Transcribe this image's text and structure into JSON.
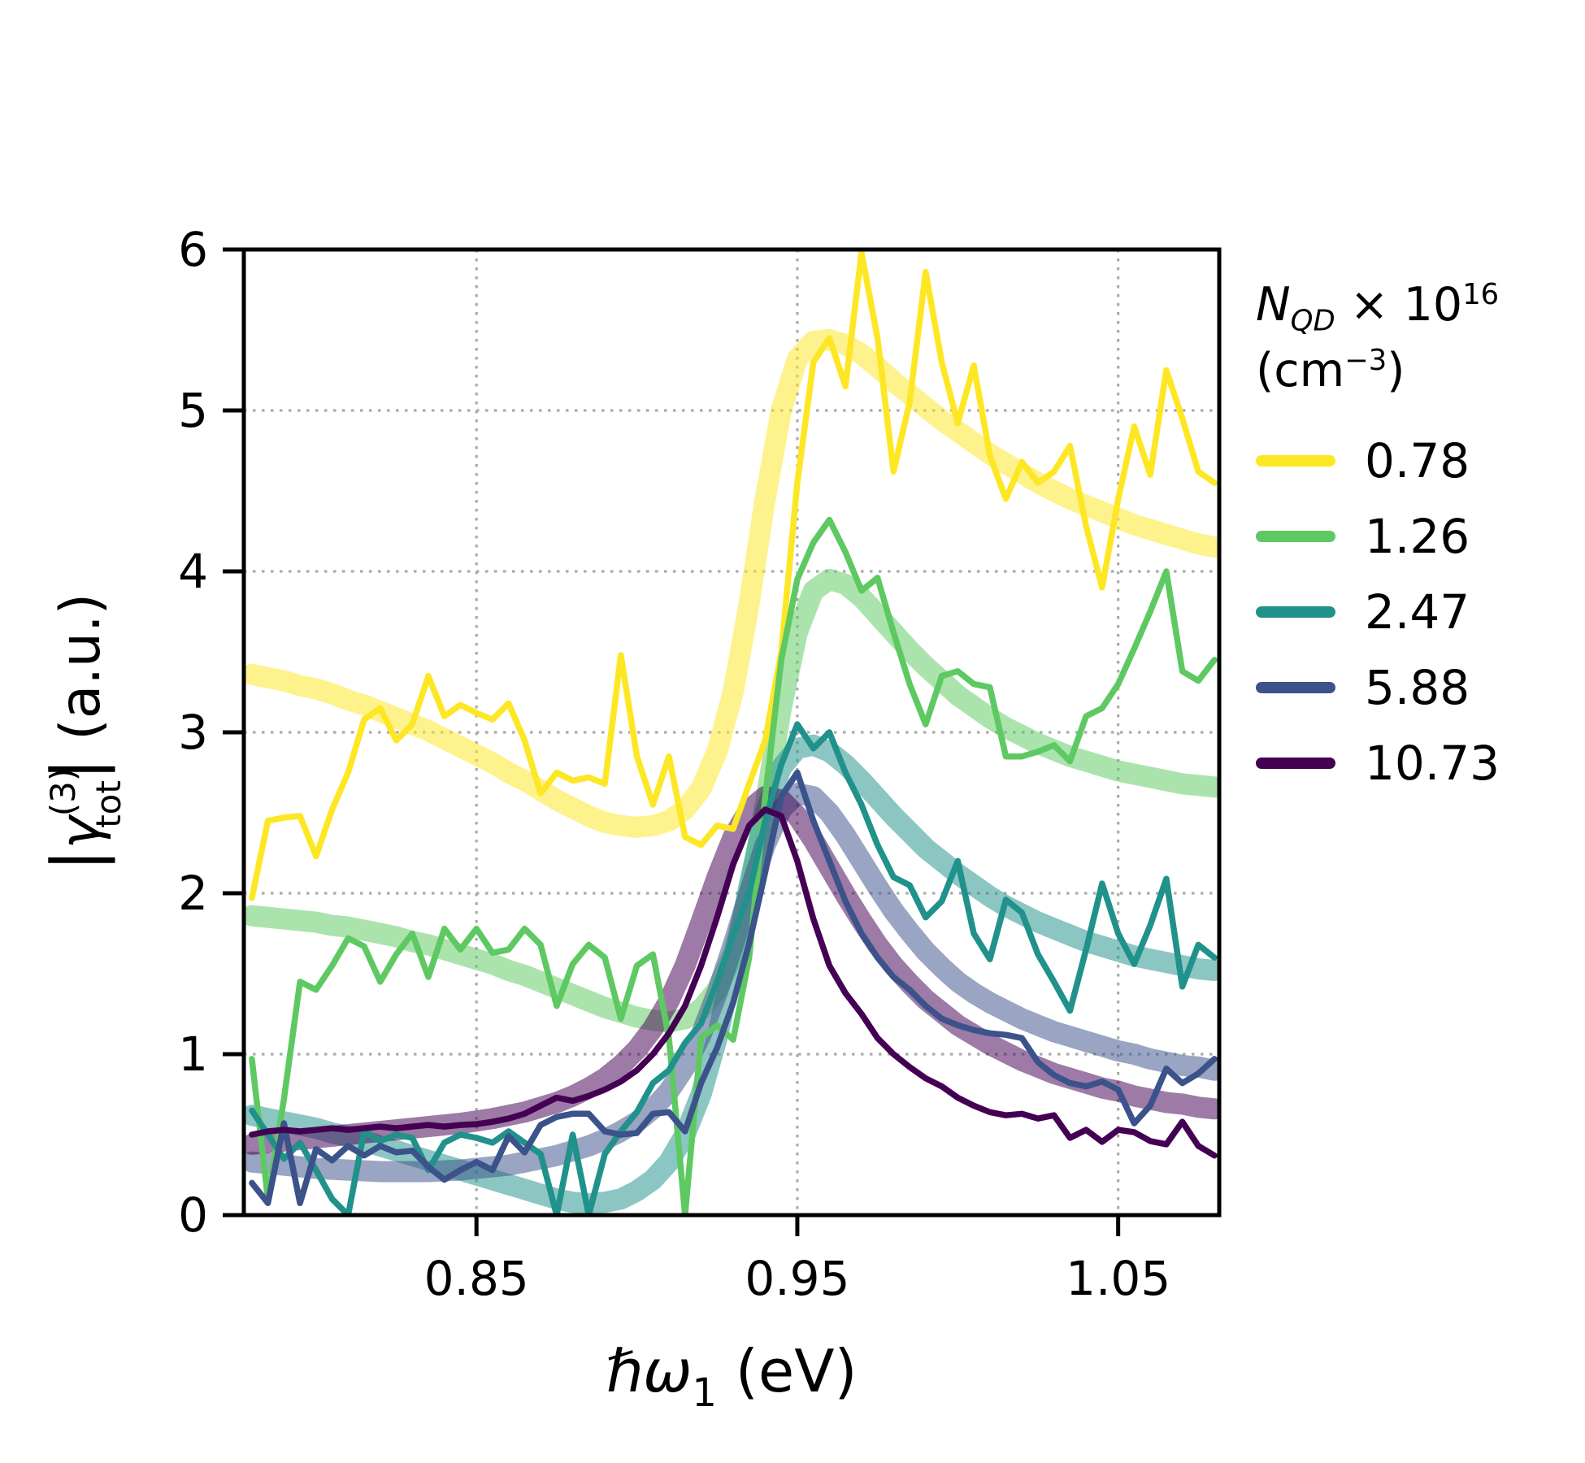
{
  "figure": {
    "background": "#ffffff"
  },
  "axes": {
    "xlabel": {
      "main": "ℏω",
      "sub": "1",
      "unit": " (eV)"
    },
    "ylabel": {
      "open": "|",
      "symbol": "γ",
      "sup": "(3)",
      "sub": "tot",
      "close": "|",
      "unit": " (a.u.)"
    },
    "xlim": [
      0.7775,
      1.0815
    ],
    "ylim": [
      0,
      6
    ],
    "xticks": [
      {
        "value": 0.85,
        "label": "0.85"
      },
      {
        "value": 0.95,
        "label": "0.95"
      },
      {
        "value": 1.05,
        "label": "1.05"
      }
    ],
    "yticks": [
      {
        "value": 0,
        "label": "0"
      },
      {
        "value": 1,
        "label": "1"
      },
      {
        "value": 2,
        "label": "2"
      },
      {
        "value": 3,
        "label": "3"
      },
      {
        "value": 4,
        "label": "4"
      },
      {
        "value": 5,
        "label": "5"
      },
      {
        "value": 6,
        "label": "6"
      }
    ],
    "grid": "dotted"
  },
  "legend": {
    "title": {
      "n": "N",
      "n_sub": "QD",
      "times": " × 10",
      "times_exp": "16",
      "cm_open": "(cm",
      "cm_exp": "−3",
      "cm_close": ")"
    },
    "items": [
      {
        "label": "0.78",
        "color": "#FDE725"
      },
      {
        "label": "1.26",
        "color": "#5EC962"
      },
      {
        "label": "2.47",
        "color": "#21918C"
      },
      {
        "label": "5.88",
        "color": "#3B528B"
      },
      {
        "label": "10.73",
        "color": "#440154"
      }
    ]
  },
  "chart_data": {
    "type": "line",
    "title": "",
    "xlabel": "hbar*omega_1 (eV)",
    "ylabel": "|gamma_tot^(3)| (a.u.)",
    "xlim": [
      0.7775,
      1.0815
    ],
    "ylim": [
      0,
      6
    ],
    "grid": true,
    "legend_position": "right",
    "x": [
      0.78,
      0.785,
      0.79,
      0.795,
      0.8,
      0.805,
      0.81,
      0.815,
      0.82,
      0.825,
      0.83,
      0.835,
      0.84,
      0.845,
      0.85,
      0.855,
      0.86,
      0.865,
      0.87,
      0.875,
      0.88,
      0.885,
      0.89,
      0.895,
      0.9,
      0.905,
      0.91,
      0.915,
      0.92,
      0.925,
      0.93,
      0.935,
      0.94,
      0.945,
      0.95,
      0.955,
      0.96,
      0.965,
      0.97,
      0.975,
      0.98,
      0.985,
      0.99,
      0.995,
      1.0,
      1.005,
      1.01,
      1.015,
      1.02,
      1.025,
      1.03,
      1.035,
      1.04,
      1.045,
      1.05,
      1.055,
      1.06,
      1.065,
      1.07,
      1.075,
      1.08
    ],
    "series": [
      {
        "label": "0.78",
        "color": "#FDE725",
        "fit": [
          3.36,
          3.34,
          3.32,
          3.29,
          3.27,
          3.24,
          3.2,
          3.17,
          3.13,
          3.09,
          3.05,
          3.01,
          2.96,
          2.91,
          2.86,
          2.81,
          2.75,
          2.7,
          2.64,
          2.58,
          2.53,
          2.48,
          2.44,
          2.42,
          2.41,
          2.42,
          2.45,
          2.52,
          2.65,
          2.88,
          3.25,
          3.8,
          4.45,
          5.0,
          5.32,
          5.43,
          5.44,
          5.41,
          5.35,
          5.27,
          5.18,
          5.1,
          5.02,
          4.94,
          4.87,
          4.8,
          4.73,
          4.67,
          4.61,
          4.55,
          4.5,
          4.45,
          4.41,
          4.37,
          4.33,
          4.29,
          4.26,
          4.23,
          4.2,
          4.17,
          4.15
        ],
        "measured": [
          1.97,
          2.45,
          2.47,
          2.48,
          2.23,
          2.52,
          2.75,
          3.08,
          3.15,
          2.95,
          3.05,
          3.35,
          3.1,
          3.17,
          3.12,
          3.08,
          3.18,
          2.95,
          2.62,
          2.75,
          2.7,
          2.72,
          2.68,
          3.48,
          2.85,
          2.55,
          2.85,
          2.35,
          2.3,
          2.42,
          2.4,
          2.68,
          2.95,
          3.5,
          4.55,
          5.3,
          5.45,
          5.15,
          5.98,
          5.45,
          4.62,
          5.05,
          5.86,
          5.3,
          4.92,
          5.28,
          4.72,
          4.45,
          4.68,
          4.55,
          4.62,
          4.78,
          4.28,
          3.9,
          4.45,
          4.9,
          4.6,
          5.25,
          4.95,
          4.62,
          4.55
        ]
      },
      {
        "label": "1.26",
        "color": "#5EC962",
        "fit": [
          1.86,
          1.85,
          1.84,
          1.83,
          1.82,
          1.8,
          1.79,
          1.77,
          1.75,
          1.73,
          1.7,
          1.68,
          1.65,
          1.62,
          1.59,
          1.56,
          1.52,
          1.49,
          1.45,
          1.41,
          1.37,
          1.33,
          1.29,
          1.26,
          1.23,
          1.21,
          1.2,
          1.22,
          1.28,
          1.4,
          1.62,
          2.0,
          2.55,
          3.15,
          3.62,
          3.88,
          3.95,
          3.92,
          3.84,
          3.73,
          3.62,
          3.51,
          3.41,
          3.32,
          3.23,
          3.16,
          3.09,
          3.03,
          2.98,
          2.93,
          2.89,
          2.85,
          2.82,
          2.79,
          2.76,
          2.74,
          2.72,
          2.7,
          2.68,
          2.67,
          2.66
        ],
        "measured": [
          0.97,
          0.1,
          0.72,
          1.45,
          1.4,
          1.55,
          1.72,
          1.67,
          1.45,
          1.62,
          1.75,
          1.48,
          1.78,
          1.65,
          1.78,
          1.63,
          1.65,
          1.78,
          1.68,
          1.3,
          1.56,
          1.68,
          1.6,
          1.22,
          1.55,
          1.62,
          1.1,
          0.0,
          1.1,
          1.18,
          1.09,
          1.6,
          2.6,
          3.45,
          3.95,
          4.18,
          4.32,
          4.12,
          3.88,
          3.96,
          3.62,
          3.3,
          3.05,
          3.35,
          3.38,
          3.3,
          3.28,
          2.85,
          2.85,
          2.88,
          2.92,
          2.82,
          3.1,
          3.15,
          3.3,
          3.52,
          3.75,
          4.0,
          3.38,
          3.32,
          3.45
        ]
      },
      {
        "label": "2.47",
        "color": "#21918C",
        "fit": [
          0.62,
          0.6,
          0.58,
          0.56,
          0.54,
          0.51,
          0.49,
          0.46,
          0.43,
          0.4,
          0.37,
          0.34,
          0.31,
          0.28,
          0.25,
          0.22,
          0.19,
          0.16,
          0.13,
          0.1,
          0.08,
          0.07,
          0.08,
          0.1,
          0.15,
          0.22,
          0.33,
          0.5,
          0.75,
          1.1,
          1.55,
          2.05,
          2.5,
          2.78,
          2.9,
          2.92,
          2.88,
          2.8,
          2.7,
          2.59,
          2.48,
          2.38,
          2.28,
          2.2,
          2.12,
          2.05,
          1.98,
          1.92,
          1.87,
          1.82,
          1.78,
          1.74,
          1.7,
          1.67,
          1.64,
          1.61,
          1.59,
          1.57,
          1.55,
          1.53,
          1.52
        ],
        "measured": [
          0.65,
          0.5,
          0.35,
          0.45,
          0.28,
          0.1,
          0.0,
          0.52,
          0.46,
          0.5,
          0.48,
          0.28,
          0.45,
          0.5,
          0.48,
          0.45,
          0.52,
          0.45,
          0.38,
          0.0,
          0.5,
          0.0,
          0.38,
          0.52,
          0.64,
          0.82,
          0.9,
          1.07,
          1.19,
          1.45,
          1.74,
          2.0,
          2.45,
          2.8,
          3.05,
          2.9,
          3.0,
          2.75,
          2.55,
          2.3,
          2.1,
          2.05,
          1.85,
          1.95,
          2.2,
          1.75,
          1.59,
          1.96,
          1.88,
          1.62,
          1.45,
          1.27,
          1.65,
          2.06,
          1.75,
          1.56,
          1.8,
          2.09,
          1.42,
          1.68,
          1.6
        ]
      },
      {
        "label": "5.88",
        "color": "#3B528B",
        "fit": [
          0.33,
          0.32,
          0.31,
          0.3,
          0.29,
          0.285,
          0.28,
          0.275,
          0.27,
          0.27,
          0.27,
          0.27,
          0.275,
          0.28,
          0.29,
          0.3,
          0.31,
          0.33,
          0.35,
          0.37,
          0.4,
          0.43,
          0.47,
          0.52,
          0.58,
          0.66,
          0.77,
          0.92,
          1.12,
          1.38,
          1.68,
          2.0,
          2.3,
          2.52,
          2.62,
          2.6,
          2.5,
          2.36,
          2.2,
          2.04,
          1.89,
          1.76,
          1.64,
          1.54,
          1.45,
          1.38,
          1.32,
          1.27,
          1.22,
          1.18,
          1.14,
          1.11,
          1.08,
          1.05,
          1.02,
          1.0,
          0.97,
          0.95,
          0.93,
          0.92,
          0.9
        ],
        "measured": [
          0.2,
          0.075,
          0.57,
          0.075,
          0.41,
          0.34,
          0.43,
          0.37,
          0.43,
          0.39,
          0.4,
          0.3,
          0.22,
          0.28,
          0.33,
          0.28,
          0.49,
          0.39,
          0.56,
          0.61,
          0.63,
          0.63,
          0.52,
          0.5,
          0.51,
          0.63,
          0.64,
          0.52,
          0.82,
          1.04,
          1.32,
          1.69,
          2.13,
          2.6,
          2.75,
          2.45,
          2.2,
          1.95,
          1.75,
          1.6,
          1.48,
          1.4,
          1.3,
          1.22,
          1.18,
          1.15,
          1.13,
          1.12,
          1.1,
          0.95,
          0.87,
          0.82,
          0.8,
          0.83,
          0.78,
          0.57,
          0.68,
          0.91,
          0.82,
          0.88,
          0.97
        ]
      },
      {
        "label": "10.73",
        "color": "#440154",
        "fit": [
          0.44,
          0.45,
          0.46,
          0.47,
          0.48,
          0.49,
          0.5,
          0.51,
          0.52,
          0.53,
          0.54,
          0.55,
          0.56,
          0.57,
          0.585,
          0.6,
          0.62,
          0.64,
          0.67,
          0.7,
          0.74,
          0.79,
          0.85,
          0.93,
          1.03,
          1.16,
          1.33,
          1.55,
          1.82,
          2.1,
          2.35,
          2.52,
          2.6,
          2.58,
          2.48,
          2.33,
          2.16,
          1.99,
          1.83,
          1.68,
          1.55,
          1.44,
          1.34,
          1.26,
          1.18,
          1.12,
          1.06,
          1.01,
          0.96,
          0.92,
          0.88,
          0.85,
          0.82,
          0.79,
          0.77,
          0.74,
          0.72,
          0.7,
          0.69,
          0.67,
          0.66
        ],
        "measured": [
          0.5,
          0.52,
          0.53,
          0.52,
          0.53,
          0.54,
          0.53,
          0.54,
          0.55,
          0.54,
          0.55,
          0.56,
          0.55,
          0.56,
          0.565,
          0.58,
          0.6,
          0.63,
          0.68,
          0.73,
          0.71,
          0.74,
          0.78,
          0.83,
          0.9,
          1.0,
          1.13,
          1.3,
          1.55,
          1.85,
          2.18,
          2.42,
          2.52,
          2.48,
          2.2,
          1.84,
          1.55,
          1.38,
          1.25,
          1.1,
          1.0,
          0.92,
          0.85,
          0.8,
          0.73,
          0.68,
          0.64,
          0.62,
          0.63,
          0.6,
          0.62,
          0.48,
          0.53,
          0.455,
          0.53,
          0.515,
          0.46,
          0.44,
          0.58,
          0.43,
          0.37
        ]
      }
    ]
  }
}
